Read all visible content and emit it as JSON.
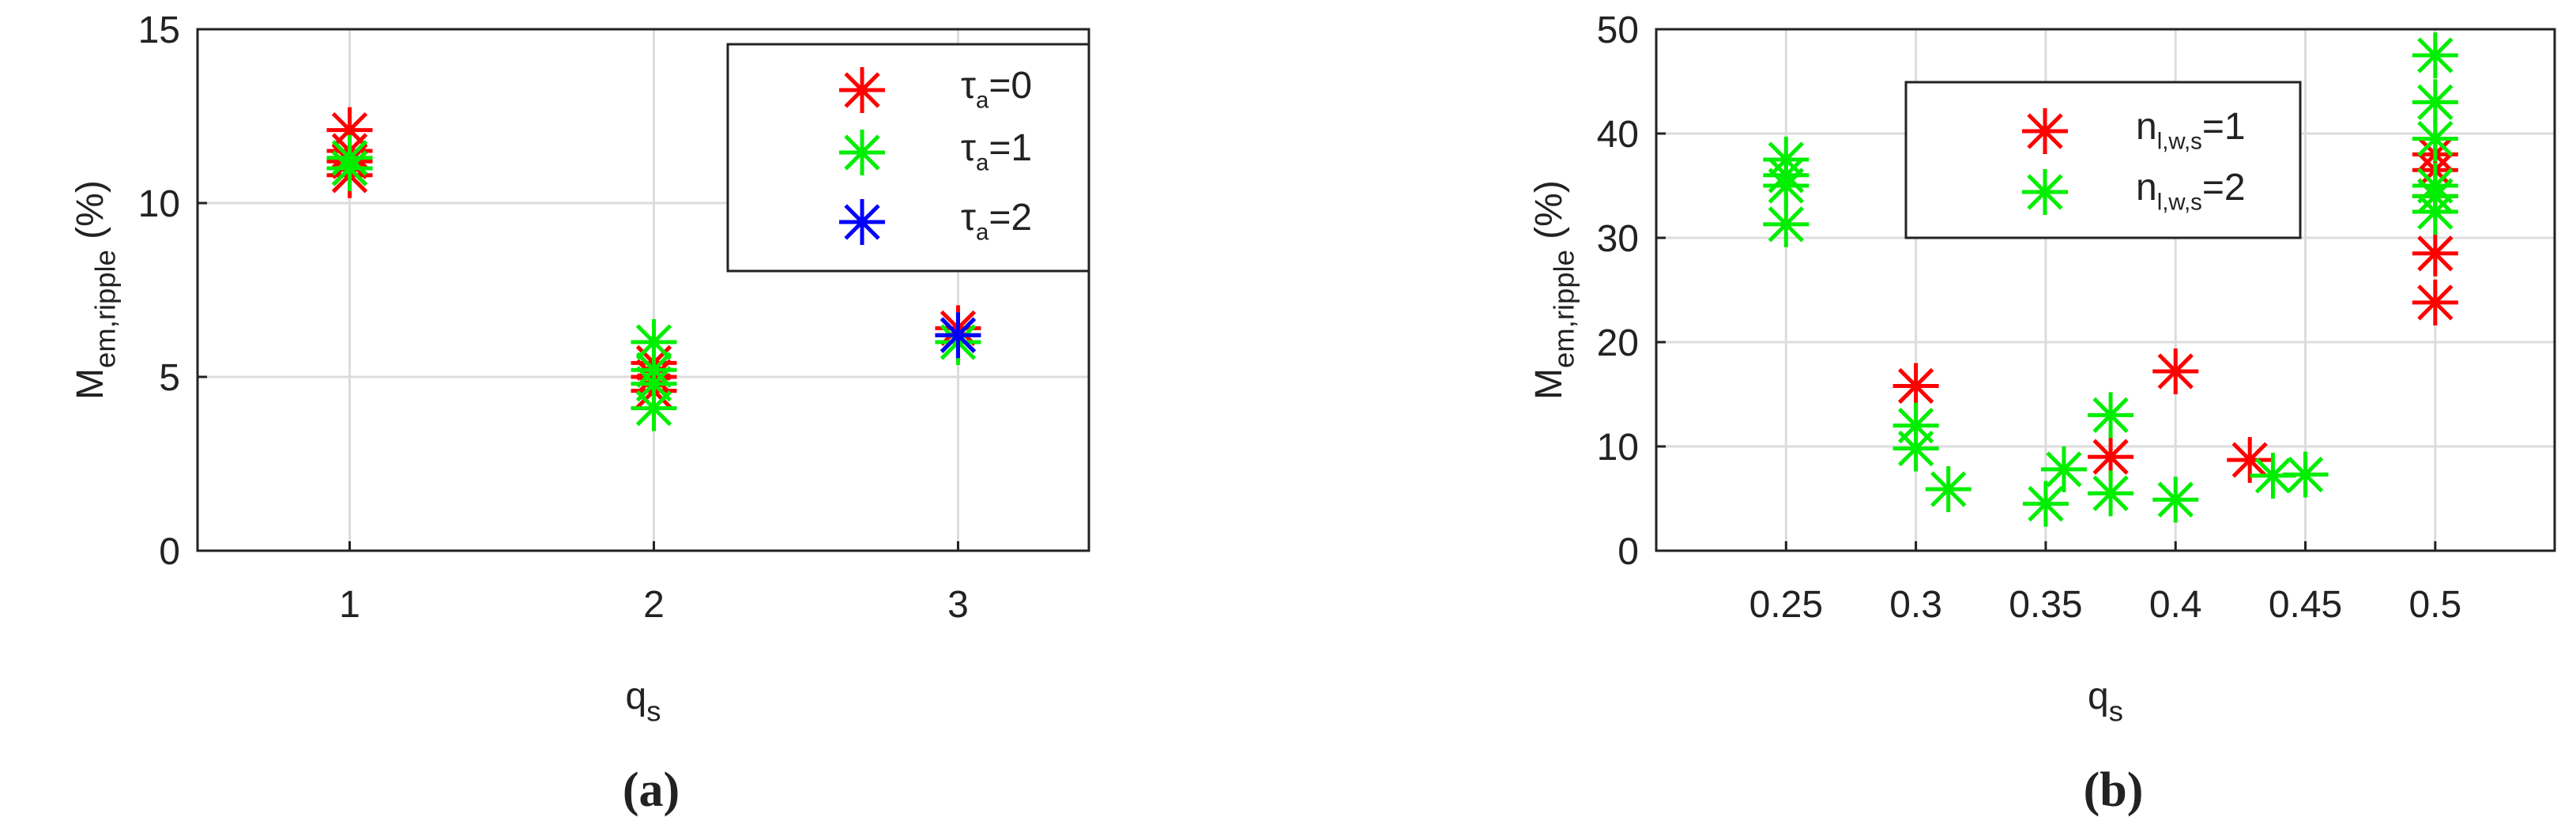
{
  "chart_data": [
    {
      "type": "scatter",
      "label": "(a)",
      "xlabel": {
        "text": "q",
        "sub": "s"
      },
      "ylabel": {
        "text": "M",
        "sub": "em,ripple",
        "suffix": " (%)"
      },
      "xlim": [
        0.5,
        3.43
      ],
      "ylim": [
        0,
        15
      ],
      "xticks": [
        1,
        2,
        3
      ],
      "yticks": [
        0,
        5,
        10,
        15
      ],
      "grid": true,
      "legend": "upper right",
      "series": [
        {
          "name": {
            "text": "τ",
            "sub": "a",
            "suffix": "=0"
          },
          "color": "#ff0000",
          "x": [
            1,
            1,
            1,
            1,
            1,
            2,
            2,
            2,
            3,
            3
          ],
          "values": [
            12.1,
            11.5,
            11.2,
            10.8,
            11.0,
            5.4,
            5.0,
            4.6,
            6.4,
            6.2
          ]
        },
        {
          "name": {
            "text": "τ",
            "sub": "a",
            "suffix": "=1"
          },
          "color": "#00ee00",
          "x": [
            1,
            1,
            2,
            2,
            2,
            2,
            3,
            3
          ],
          "values": [
            11.3,
            11.0,
            6.0,
            4.8,
            4.1,
            5.2,
            6.0,
            6.2
          ]
        },
        {
          "name": {
            "text": "τ",
            "sub": "a",
            "suffix": "=2"
          },
          "color": "#0000ff",
          "x": [
            3
          ],
          "values": [
            6.2
          ]
        }
      ]
    },
    {
      "type": "scatter",
      "label": "(b)",
      "xlabel": {
        "text": "q",
        "sub": "s"
      },
      "ylabel": {
        "text": "M",
        "sub": "em,ripple",
        "suffix": " (%)"
      },
      "xlim": [
        0.2,
        0.546
      ],
      "ylim": [
        0,
        50
      ],
      "xticks": [
        0.25,
        0.3,
        0.35,
        0.4,
        0.45,
        0.5
      ],
      "yticks": [
        0,
        10,
        20,
        30,
        40,
        50
      ],
      "grid": true,
      "legend": "upper center",
      "series": [
        {
          "name": {
            "text": "n",
            "sub": "l,w,s",
            "suffix": "=1"
          },
          "color": "#ff0000",
          "x": [
            0.3,
            0.375,
            0.4,
            0.4286,
            0.5,
            0.5,
            0.5,
            0.5,
            0.5
          ],
          "values": [
            15.8,
            9,
            17.2,
            8.7,
            23.8,
            28.5,
            34,
            36.5,
            38
          ]
        },
        {
          "name": {
            "text": "n",
            "sub": "l,w,s",
            "suffix": "=2"
          },
          "color": "#00ee00",
          "x": [
            0.25,
            0.25,
            0.25,
            0.25,
            0.3,
            0.3,
            0.3125,
            0.35,
            0.357,
            0.375,
            0.375,
            0.4,
            0.4375,
            0.45,
            0.5,
            0.5,
            0.5,
            0.5,
            0.5,
            0.5
          ],
          "values": [
            31.3,
            35,
            36,
            37.5,
            12,
            9.8,
            5.9,
            4.5,
            7.8,
            5.5,
            13,
            4.9,
            7.2,
            7.3,
            32.5,
            34,
            35,
            39.5,
            43,
            47.5
          ]
        }
      ]
    }
  ]
}
